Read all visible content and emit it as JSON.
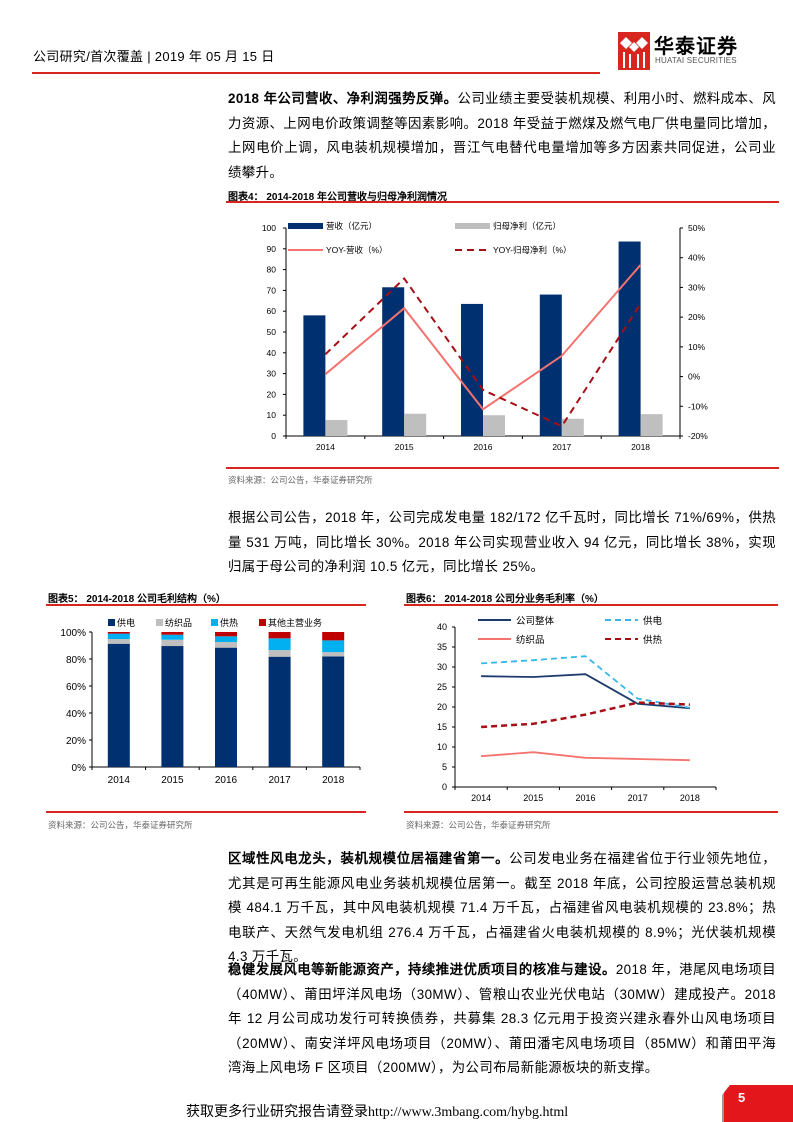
{
  "header": {
    "text": "公司研究/首次覆盖 | 2019 年 05 月 15 日",
    "logo_cn": "华泰证券",
    "logo_en": "HUATAI SECURITIES",
    "accent_color": "#d7261e"
  },
  "paragraphs": [
    {
      "bold": "2018 年公司营收、净利润强势反弹。",
      "text": "公司业绩主要受装机规模、利用小时、燃料成本、风力资源、上网电价政策调整等因素影响。2018 年受益于燃煤及燃气电厂供电量同比增加，上网电价上调，风电装机规模增加，晋江气电替代电量增加等多方因素共同促进，公司业绩攀升。"
    },
    {
      "bold": "",
      "text": "根据公司公告，2018 年，公司完成发电量 182/172 亿千瓦时，同比增长 71%/69%，供热量 531 万吨，同比增长 30%。2018 年公司实现营业收入 94 亿元，同比增长 38%，实现归属于母公司的净利润 10.5 亿元，同比增长 25%。"
    },
    {
      "bold": "区域性风电龙头，装机规模位居福建省第一。",
      "text": "公司发电业务在福建省位于行业领先地位，尤其是可再生能源风电业务装机规模位居第一。截至 2018 年底，公司控股运营总装机规模 484.1 万千瓦，其中风电装机规模 71.4 万千瓦，占福建省风电装机规模的 23.8%；热电联产、天然气发电机组 276.4 万千瓦，占福建省火电装机规模的 8.9%；光伏装机规模 4.3 万千瓦。"
    },
    {
      "bold": "稳健发展风电等新能源资产，持续推进优质项目的核准与建设。",
      "text": "2018 年，港尾风电场项目（40MW）、莆田坪洋风电场（30MW）、管粮山农业光伏电站（30MW）建成投产。2018 年 12 月公司成功发行可转换债券，共募集 28.3 亿元用于投资兴建永春外山风电场项目（20MW）、南安洋坪风电场项目（20MW）、莆田潘宅风电场项目（85MW）和莆田平海湾海上风电场 F 区项目（200MW），为公司布局新能源板块的新支撑。"
    }
  ],
  "figures": {
    "fig4": {
      "title": "图表4：  2014-2018 年公司营收与归母净利润情况",
      "source": "资料来源：公司公告，华泰证券研究所"
    },
    "fig5": {
      "title": "图表5：  2014-2018 公司毛利结构（%）",
      "source": "资料来源：公司公告，华泰证券研究所"
    },
    "fig6": {
      "title": "图表6：  2014-2018 公司分业务毛利率（%）",
      "source": "资料来源：公司公告，华泰证券研究所"
    }
  },
  "chart_data": [
    {
      "type": "bar",
      "title": "2014-2018 年公司营收与归母净利润情况",
      "categories": [
        "2014",
        "2015",
        "2016",
        "2017",
        "2018"
      ],
      "series": [
        {
          "name": "营收（亿元）",
          "kind": "bar",
          "axis": "left",
          "color": "#003070",
          "values": [
            58,
            71.5,
            63.5,
            68,
            93.5
          ]
        },
        {
          "name": "归母净利（亿元）",
          "kind": "bar",
          "axis": "left",
          "color": "#bfbfbf",
          "values": [
            7.7,
            10.7,
            10.0,
            8.3,
            10.5
          ]
        },
        {
          "name": "YOY-营收（%）",
          "kind": "line",
          "axis": "right",
          "color": "#f4736f",
          "style": "solid",
          "values": [
            0.8,
            23,
            -11,
            7,
            37.6
          ]
        },
        {
          "name": "YOY-归母净利（%）",
          "kind": "line",
          "axis": "right",
          "color": "#a50f15",
          "style": "dashed",
          "values": [
            7.5,
            33,
            -4.5,
            -16.7,
            24.5
          ]
        }
      ],
      "ylim": [
        0,
        100
      ],
      "yticks": [
        0,
        10,
        20,
        30,
        40,
        50,
        60,
        70,
        80,
        90,
        100
      ],
      "y2lim": [
        -20,
        50
      ],
      "y2ticks": [
        "-20%",
        "-10%",
        "0%",
        "10%",
        "20%",
        "30%",
        "40%",
        "50%"
      ],
      "legend_position": "top-inside",
      "grid": false
    },
    {
      "type": "bar",
      "stacked": true,
      "title": "2014-2018 公司毛利结构（%）",
      "categories": [
        "2014",
        "2015",
        "2016",
        "2017",
        "2018"
      ],
      "series": [
        {
          "name": "供电",
          "color": "#003070",
          "values": [
            91.3,
            89.6,
            88.4,
            81.7,
            81.9
          ]
        },
        {
          "name": "纺织品",
          "color": "#bfbfbf",
          "values": [
            3.5,
            4.7,
            4.2,
            4.9,
            3.2
          ]
        },
        {
          "name": "供热",
          "color": "#00b0f0",
          "values": [
            4.0,
            3.7,
            4.2,
            8.7,
            8.7
          ]
        },
        {
          "name": "其他主营业务",
          "color": "#c00000",
          "values": [
            1.2,
            2.0,
            3.2,
            4.7,
            6.2
          ]
        }
      ],
      "ylim": [
        0,
        100
      ],
      "yticks": [
        "0%",
        "20%",
        "40%",
        "60%",
        "80%",
        "100%"
      ],
      "legend_position": "top",
      "grid": false
    },
    {
      "type": "line",
      "title": "2014-2018 公司分业务毛利率（%）",
      "categories": [
        "2014",
        "2015",
        "2016",
        "2017",
        "2018"
      ],
      "series": [
        {
          "name": "公司整体",
          "color": "#1f3b6e",
          "style": "solid",
          "values": [
            27.7,
            27.5,
            28.2,
            20.8,
            19.7
          ]
        },
        {
          "name": "供电",
          "color": "#35b8e8",
          "style": "dashed",
          "values": [
            30.9,
            31.7,
            32.7,
            22.1,
            19.8
          ]
        },
        {
          "name": "纺织品",
          "color": "#f4736f",
          "style": "solid",
          "values": [
            7.7,
            8.7,
            7.3,
            7.0,
            6.7
          ]
        },
        {
          "name": "供热",
          "color": "#a50f15",
          "style": "dashed",
          "values": [
            15.0,
            15.8,
            18.1,
            21.1,
            20.6
          ]
        }
      ],
      "ylim": [
        0,
        40
      ],
      "yticks": [
        0,
        5,
        10,
        15,
        20,
        25,
        30,
        35,
        40
      ],
      "legend_position": "top-inside",
      "grid": false
    }
  ],
  "footer": {
    "text": "获取更多行业研究报告请登录http://www.3mbang.com/hybg.html",
    "page_number": "5"
  }
}
